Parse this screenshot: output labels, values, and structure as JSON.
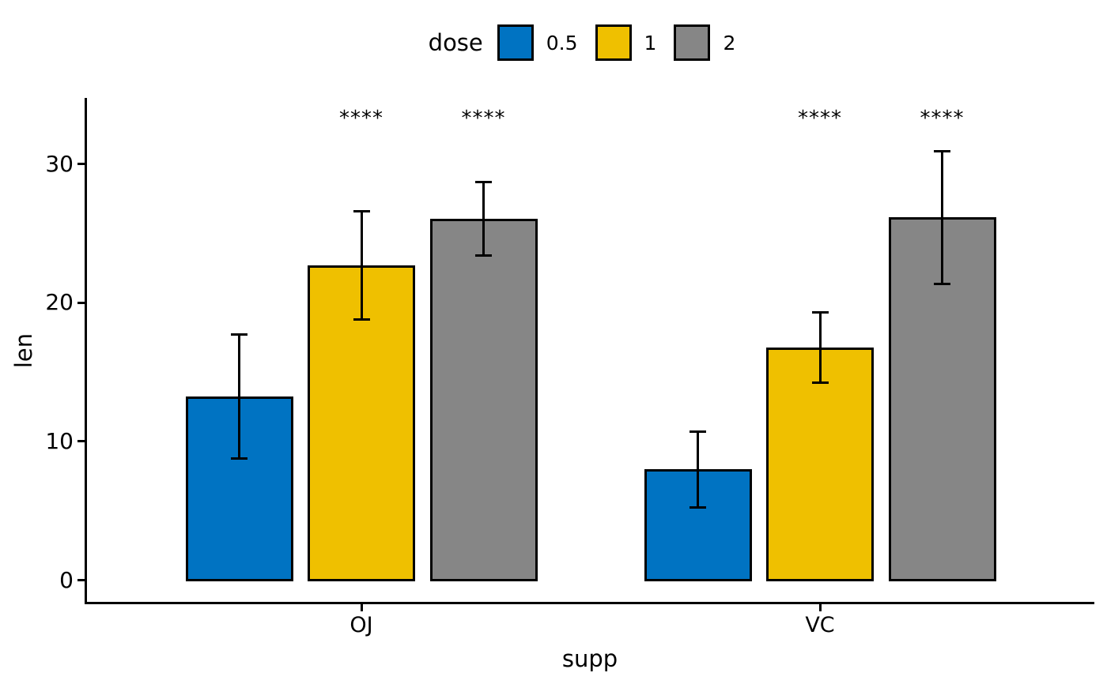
{
  "figure": {
    "background": "#FFFFFF",
    "accent_black": "#000000"
  },
  "legend": {
    "title": "dose",
    "position": "top",
    "entries": [
      {
        "label": "0.5",
        "color": "#0073C2"
      },
      {
        "label": "1",
        "color": "#EFC000"
      },
      {
        "label": "2",
        "color": "#868686"
      }
    ]
  },
  "chart_data": {
    "type": "bar",
    "title": "",
    "xlabel": "supp",
    "ylabel": "len",
    "legend_title": "dose",
    "legend_position": "top",
    "grid": false,
    "categories": [
      "OJ",
      "VC"
    ],
    "series": [
      {
        "name": "0.5",
        "color": "#0073C2",
        "means": [
          13.23,
          7.98
        ],
        "sd": [
          4.46,
          2.75
        ],
        "significance": [
          null,
          null
        ]
      },
      {
        "name": "1",
        "color": "#EFC000",
        "means": [
          22.7,
          16.77
        ],
        "sd": [
          3.91,
          2.52
        ],
        "significance": [
          "****",
          "****"
        ]
      },
      {
        "name": "2",
        "color": "#868686",
        "means": [
          26.06,
          26.14
        ],
        "sd": [
          2.66,
          4.8
        ],
        "significance": [
          "****",
          "****"
        ]
      }
    ],
    "error_bars": "mean ± sd",
    "yticks": [
      0,
      10,
      20,
      30
    ],
    "ylim": [
      -1.6,
      34.8
    ],
    "bar_outline_color": "#000000"
  }
}
